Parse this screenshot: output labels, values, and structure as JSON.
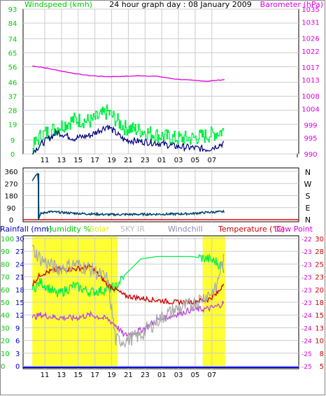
{
  "chart_data": [
    {
      "type": "line",
      "title": "24 hour graph day : 08 January 2009",
      "left_label": "Windspeed (kmh)",
      "right_label": "Barometer (hPa)",
      "x_ticks": [
        "11",
        "13",
        "15",
        "17",
        "19",
        "21",
        "23",
        "01",
        "03",
        "05",
        "07"
      ],
      "left_ticks": [
        93,
        84,
        74,
        65,
        56,
        46,
        37,
        28,
        19,
        9,
        0
      ],
      "right_ticks": [
        1035,
        1031,
        1026,
        1022,
        1017,
        1013,
        1008,
        1004,
        999,
        995,
        990
      ],
      "left_ylim": [
        0,
        93
      ],
      "right_ylim": [
        990,
        1035
      ],
      "x_hours": [
        9.5,
        10.5,
        12.5,
        14.5,
        16.5,
        18.5,
        20.5,
        22.5,
        24.5,
        26.5,
        28.5,
        30.5,
        32.5
      ],
      "series": [
        {
          "axis": "right",
          "color": "#dd00dd",
          "values": [
            1017.3,
            1017.0,
            1016.0,
            1015.0,
            1014.3,
            1014.0,
            1014.1,
            1014.3,
            1014.1,
            1013.3,
            1012.9,
            1012.6,
            1013.1
          ]
        },
        {
          "axis": "left",
          "color": "#00ee44",
          "values": [
            4,
            12,
            17,
            22,
            21,
            27,
            17,
            15,
            12,
            10,
            10,
            12,
            15
          ]
        },
        {
          "axis": "left",
          "color": "#000080",
          "values": [
            1,
            6,
            14,
            10,
            12,
            18,
            9,
            8,
            7,
            5,
            4,
            3,
            7
          ]
        }
      ]
    },
    {
      "type": "line",
      "right_label": "N W S E N",
      "left_ticks": [
        360,
        270,
        180,
        90,
        0
      ],
      "ylim": [
        0,
        360
      ],
      "x_hours": [
        9.5,
        9.9,
        10.2,
        10.3,
        10.5,
        11.5,
        14.5,
        18.5,
        22.5,
        26.5,
        28.5,
        30.5,
        32.5
      ],
      "series": [
        {
          "color": "#004466",
          "values": [
            290,
            330,
            345,
            10,
            45,
            60,
            48,
            38,
            40,
            42,
            45,
            55,
            60
          ]
        }
      ]
    },
    {
      "type": "line",
      "legend": [
        "Rainfall (mm)",
        "Humidity %",
        "Solar",
        "SKY IR",
        "Windchill",
        "Temperature (°C)",
        "Dew Point"
      ],
      "legend_colors": [
        "#0000cc",
        "#00cc00",
        "#e8e800",
        "#bbbbbb",
        "#8888bb",
        "#cc0000",
        "#dd00dd"
      ],
      "rain_ticks": [
        "30",
        "27",
        "24",
        "21",
        "18",
        "15",
        "12",
        "9",
        "6",
        "3",
        "0"
      ],
      "humidity_ticks": [
        "100",
        "90",
        "80",
        "70",
        "60",
        "50",
        "40",
        "30",
        "20",
        "10",
        "0"
      ],
      "temp_ticks": [
        "30",
        "28",
        "25",
        "23",
        "20",
        "18",
        "15",
        "13",
        "10",
        "8",
        "5"
      ],
      "far_right_ticks": [
        "-22",
        "-23",
        "-23",
        "-23",
        "-23",
        "-23",
        "-24",
        "-24",
        "-24",
        "-25",
        "-25"
      ],
      "x_ticks": [
        "11",
        "13",
        "15",
        "17",
        "19",
        "21",
        "23",
        "01",
        "03",
        "05",
        "07"
      ],
      "x_hours": [
        9.5,
        10.5,
        12.5,
        14.5,
        16.5,
        18.5,
        19.5,
        20.5,
        22.5,
        24.5,
        26.5,
        28.5,
        30.5,
        31.5,
        32.0,
        32.5
      ],
      "series": [
        {
          "name": "Humidity %",
          "color": "#00ee44",
          "values": [
            60,
            66,
            56,
            63,
            58,
            60,
            62,
            71,
            84,
            86,
            86,
            86,
            84,
            82,
            79,
            76
          ]
        },
        {
          "name": "Temperature (°C)",
          "color": "#cc0000",
          "values": [
            21,
            23,
            24,
            24,
            24.5,
            21,
            20,
            18.8,
            18.3,
            17.9,
            17.5,
            17.6,
            18,
            19,
            20,
            22
          ]
        },
        {
          "name": "Dew Point",
          "color": "#bb44dd",
          "values": [
            14.5,
            15,
            14.5,
            14.4,
            15,
            14.2,
            13,
            11,
            12,
            14,
            15,
            16,
            16.2,
            16.6,
            17,
            17.5
          ]
        },
        {
          "name": "SKY IR",
          "color": "#aaaaaa",
          "values": [
            28,
            26,
            24,
            25,
            24,
            22,
            10,
            10,
            11,
            14,
            16,
            17,
            19,
            20,
            24,
            26
          ]
        }
      ],
      "solar_bands": [
        [
          9.5,
          19.7
        ],
        [
          29.9,
          32.6
        ]
      ]
    }
  ]
}
